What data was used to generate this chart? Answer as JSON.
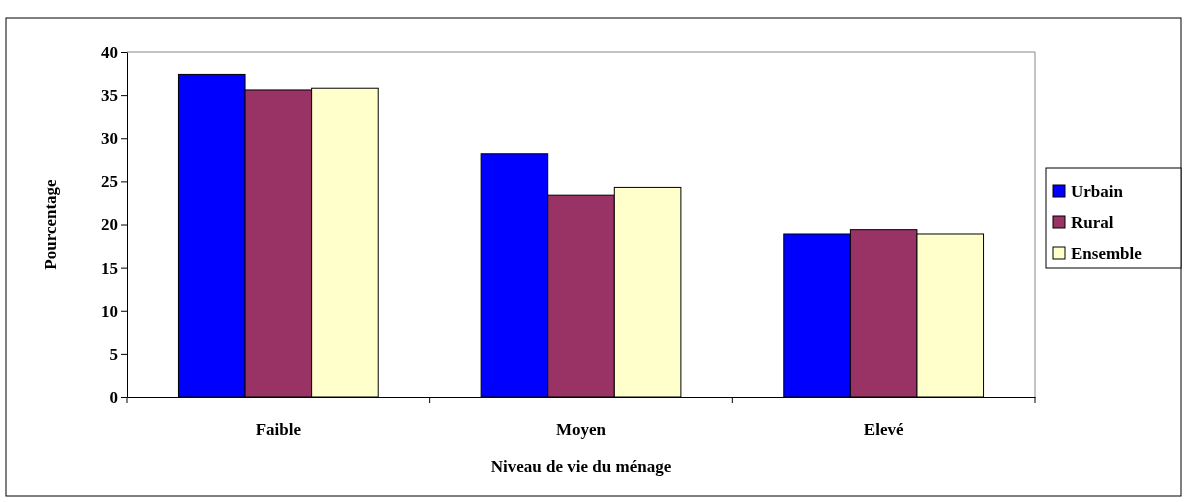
{
  "chart_data": {
    "type": "bar",
    "xlabel": "Niveau de vie du ménage",
    "ylabel": "Pourcentage",
    "categories": [
      "Faible",
      "Moyen",
      "Elevé"
    ],
    "series": [
      {
        "name": "Urbain",
        "color": "#0000ff",
        "values": [
          37.4,
          28.2,
          18.9
        ]
      },
      {
        "name": "Rural",
        "color": "#993366",
        "values": [
          35.6,
          23.4,
          19.4
        ]
      },
      {
        "name": "Ensemble",
        "color": "#ffffcc",
        "values": [
          35.8,
          24.3,
          18.9
        ]
      }
    ],
    "ylim": [
      0,
      40
    ],
    "yticks": [
      0,
      5,
      10,
      15,
      20,
      25,
      30,
      35,
      40
    ],
    "grid": false,
    "legend": "right"
  }
}
